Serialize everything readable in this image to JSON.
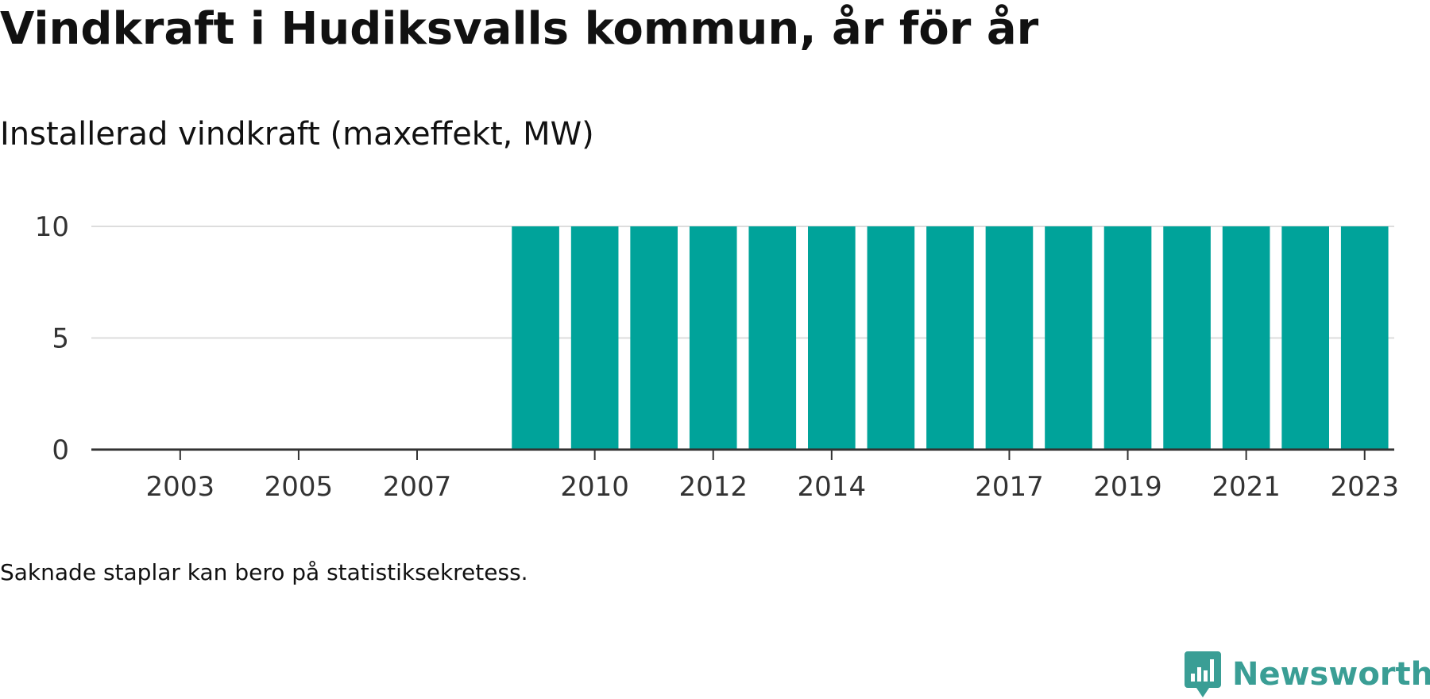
{
  "title": "Vindkraft i Hudiksvalls kommun, år för år",
  "subtitle": "Installerad vindkraft (maxeffekt, MW)",
  "note": "Saknade staplar kan bero på statistiksekretess.",
  "brand": {
    "name": "Newsworthy",
    "icon": "newsworthy-logo-icon",
    "color": "#3a9e95"
  },
  "colors": {
    "bar": "#00a39a",
    "grid": "#dddddd",
    "axis": "#333333",
    "text": "#111111"
  },
  "chart_data": {
    "type": "bar",
    "title": "Vindkraft i Hudiksvalls kommun, år för år",
    "subtitle": "Installerad vindkraft (maxeffekt, MW)",
    "xlabel": "",
    "ylabel": "",
    "ylim": [
      0,
      10
    ],
    "yticks": [
      0,
      5,
      10
    ],
    "grid": true,
    "legend": "none",
    "categories": [
      "2002",
      "2003",
      "2004",
      "2005",
      "2006",
      "2007",
      "2008",
      "2009",
      "2010",
      "2011",
      "2012",
      "2013",
      "2014",
      "2015",
      "2016",
      "2017",
      "2018",
      "2019",
      "2020",
      "2021",
      "2022",
      "2023"
    ],
    "xticks": [
      "2003",
      "2005",
      "2007",
      "2010",
      "2012",
      "2014",
      "2017",
      "2019",
      "2021",
      "2023"
    ],
    "values": [
      null,
      null,
      null,
      null,
      null,
      null,
      null,
      10,
      10,
      10,
      10,
      10,
      10,
      10,
      10,
      10,
      10,
      10,
      10,
      10,
      10,
      10
    ]
  }
}
